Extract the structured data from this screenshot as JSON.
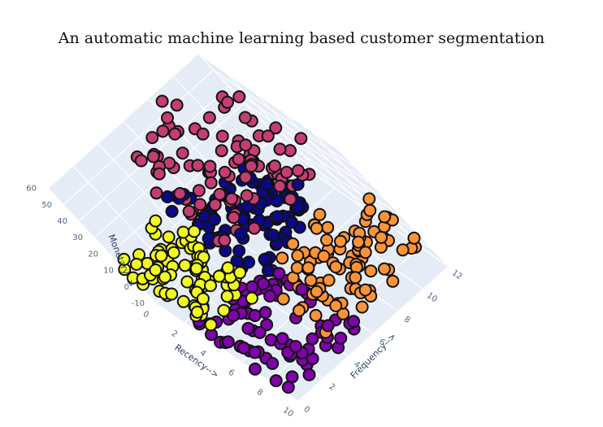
{
  "chart_data": {
    "type": "scatter3d",
    "title": "An automatic machine learning based customer segmentation",
    "axes": {
      "x": {
        "label": "Recency-->",
        "range": [
          0,
          10
        ],
        "ticks": [
          "0",
          "2",
          "4",
          "6",
          "8",
          "10"
        ]
      },
      "y": {
        "label": "Frequency-->",
        "range": [
          0,
          12
        ],
        "ticks": [
          "0",
          "2",
          "4",
          "6",
          "8",
          "10",
          "12"
        ]
      },
      "z": {
        "label": "Monetary-->",
        "range": [
          -10,
          60
        ],
        "ticks": [
          "-10",
          "0",
          "10",
          "20",
          "30",
          "40",
          "50",
          "60"
        ]
      }
    },
    "background": "#e5ecf6",
    "marker_outline": "#111111",
    "clusters": [
      {
        "color": "#c43e72",
        "recency": [
          0,
          6
        ],
        "frequency": [
          4,
          12
        ],
        "monetary": [
          25,
          62
        ]
      },
      {
        "color": "#0d0887",
        "recency": [
          1,
          6
        ],
        "frequency": [
          4,
          10
        ],
        "monetary": [
          10,
          30
        ]
      },
      {
        "color": "#f0f921",
        "recency": [
          0,
          6
        ],
        "frequency": [
          0,
          4
        ],
        "monetary": [
          5,
          25
        ]
      },
      {
        "color": "#fb9438",
        "recency": [
          6,
          10
        ],
        "frequency": [
          4,
          12
        ],
        "monetary": [
          0,
          20
        ]
      },
      {
        "color": "#7e03a8",
        "recency": [
          3,
          10
        ],
        "frequency": [
          0,
          6
        ],
        "monetary": [
          -10,
          5
        ]
      }
    ]
  }
}
